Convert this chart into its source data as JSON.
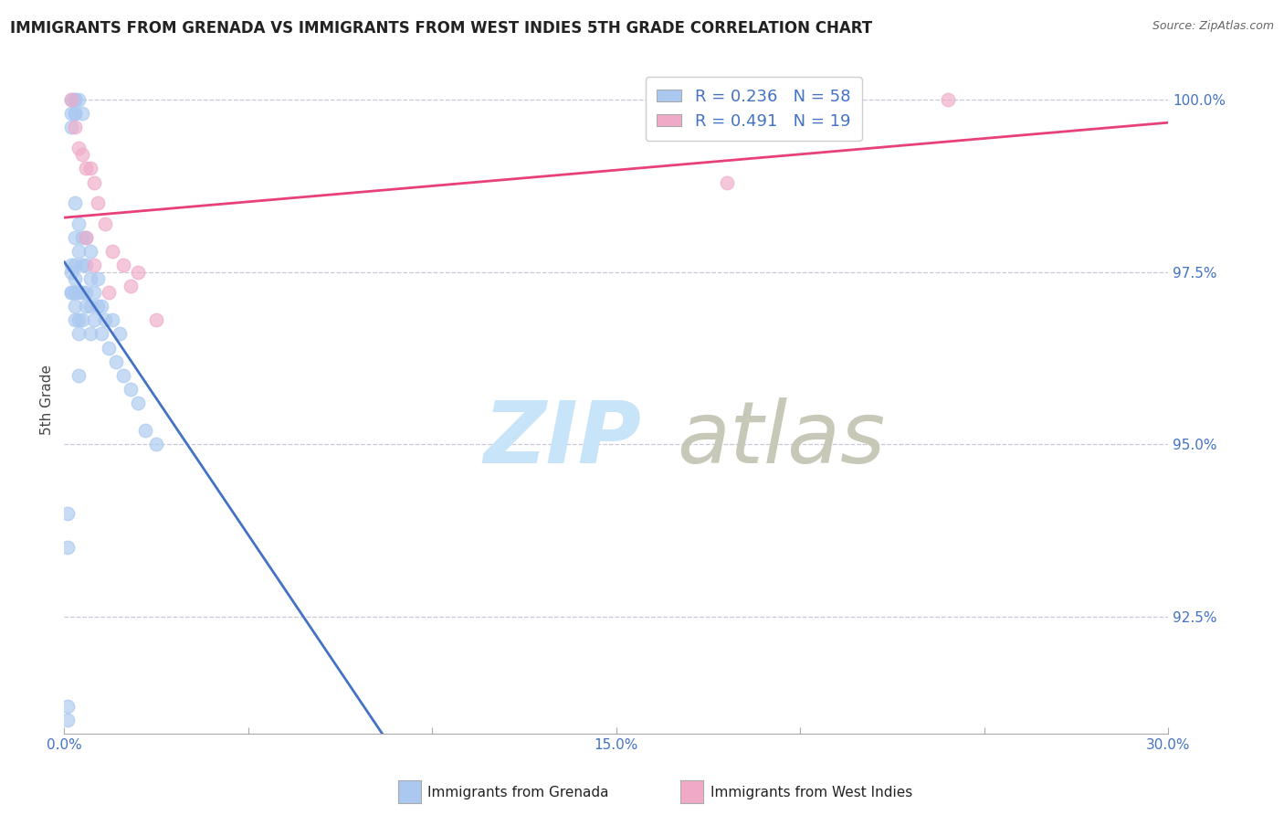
{
  "title": "IMMIGRANTS FROM GRENADA VS IMMIGRANTS FROM WEST INDIES 5TH GRADE CORRELATION CHART",
  "source": "Source: ZipAtlas.com",
  "ylabel": "5th Grade",
  "xlim": [
    0.0,
    0.3
  ],
  "ylim": [
    0.908,
    1.005
  ],
  "xtick_labels": [
    "0.0%",
    "",
    "",
    "",
    "",
    "",
    "",
    "",
    "",
    "",
    "",
    "",
    "",
    "",
    "",
    "15.0%",
    "",
    "",
    "",
    "",
    "",
    "",
    "",
    "",
    "",
    "",
    "",
    "",
    "",
    "30.0%"
  ],
  "xtick_vals_major": [
    0.0,
    0.15,
    0.3
  ],
  "xtick_vals_minor": [
    0.05,
    0.1,
    0.2,
    0.25
  ],
  "ytick_labels": [
    "92.5%",
    "95.0%",
    "97.5%",
    "100.0%"
  ],
  "ytick_vals": [
    0.925,
    0.95,
    0.975,
    1.0
  ],
  "blue_color": "#aac8f0",
  "pink_color": "#f0aac8",
  "blue_line_color": "#4472c4",
  "pink_line_color": "#e8407a",
  "grid_color": "#c8c8d8",
  "title_color": "#222222",
  "legend_blue_text": "R = 0.236   N = 58",
  "legend_pink_text": "R = 0.491   N = 19",
  "legend_text_color": "#4472c4",
  "xlegend_blue": "Immigrants from Grenada",
  "xlegend_pink": "Immigrants from West Indies",
  "watermark_zip_color": "#c8e4f8",
  "watermark_atlas_color": "#c8c8b8",
  "blue_x": [
    0.001,
    0.001,
    0.002,
    0.002,
    0.002,
    0.002,
    0.002,
    0.003,
    0.003,
    0.003,
    0.003,
    0.003,
    0.003,
    0.003,
    0.003,
    0.004,
    0.004,
    0.004,
    0.004,
    0.004,
    0.004,
    0.005,
    0.005,
    0.005,
    0.005,
    0.005,
    0.006,
    0.006,
    0.006,
    0.006,
    0.007,
    0.007,
    0.007,
    0.007,
    0.008,
    0.008,
    0.009,
    0.009,
    0.01,
    0.01,
    0.011,
    0.012,
    0.013,
    0.014,
    0.015,
    0.016,
    0.018,
    0.02,
    0.022,
    0.025,
    0.002,
    0.003,
    0.004,
    0.003,
    0.002,
    0.003,
    0.001,
    0.001
  ],
  "blue_y": [
    0.91,
    0.912,
    0.972,
    0.975,
    0.976,
    0.998,
    1.0,
    0.968,
    0.97,
    0.972,
    0.974,
    0.976,
    0.98,
    0.998,
    1.0,
    0.966,
    0.968,
    0.972,
    0.978,
    0.982,
    1.0,
    0.968,
    0.972,
    0.976,
    0.98,
    0.998,
    0.97,
    0.972,
    0.976,
    0.98,
    0.966,
    0.97,
    0.974,
    0.978,
    0.968,
    0.972,
    0.97,
    0.974,
    0.966,
    0.97,
    0.968,
    0.964,
    0.968,
    0.962,
    0.966,
    0.96,
    0.958,
    0.956,
    0.952,
    0.95,
    0.972,
    0.985,
    0.96,
    0.998,
    0.996,
    1.0,
    0.94,
    0.935
  ],
  "pink_x": [
    0.002,
    0.003,
    0.004,
    0.005,
    0.006,
    0.007,
    0.008,
    0.009,
    0.011,
    0.013,
    0.016,
    0.018,
    0.02,
    0.025,
    0.006,
    0.008,
    0.012,
    0.18,
    0.24
  ],
  "pink_y": [
    1.0,
    0.996,
    0.993,
    0.992,
    0.99,
    0.99,
    0.988,
    0.985,
    0.982,
    0.978,
    0.976,
    0.973,
    0.975,
    0.968,
    0.98,
    0.976,
    0.972,
    0.988,
    1.0
  ]
}
